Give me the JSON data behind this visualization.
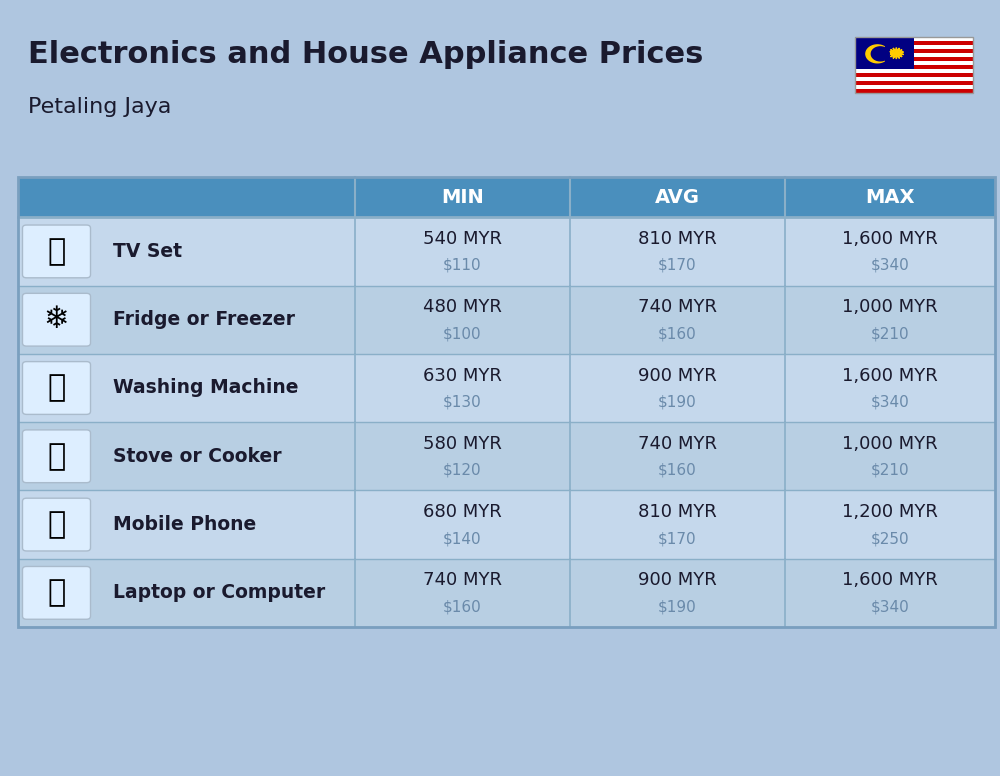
{
  "title": "Electronics and House Appliance Prices",
  "subtitle": "Petaling Jaya",
  "header_labels": [
    "MIN",
    "AVG",
    "MAX"
  ],
  "rows": [
    {
      "label": "TV Set",
      "emoji": "📺",
      "min_myr": "540 MYR",
      "min_usd": "$110",
      "avg_myr": "810 MYR",
      "avg_usd": "$170",
      "max_myr": "1,600 MYR",
      "max_usd": "$340"
    },
    {
      "label": "Fridge or Freezer",
      "emoji": "🍺",
      "min_myr": "480 MYR",
      "min_usd": "$100",
      "avg_myr": "740 MYR",
      "avg_usd": "$160",
      "max_myr": "1,000 MYR",
      "max_usd": "$210"
    },
    {
      "label": "Washing Machine",
      "emoji": "🧹",
      "min_myr": "630 MYR",
      "min_usd": "$130",
      "avg_myr": "900 MYR",
      "avg_usd": "$190",
      "max_myr": "1,600 MYR",
      "max_usd": "$340"
    },
    {
      "label": "Stove or Cooker",
      "emoji": "🧹",
      "min_myr": "580 MYR",
      "min_usd": "$120",
      "avg_myr": "740 MYR",
      "avg_usd": "$160",
      "max_myr": "1,000 MYR",
      "max_usd": "$210"
    },
    {
      "label": "Mobile Phone",
      "emoji": "📱",
      "min_myr": "680 MYR",
      "min_usd": "$140",
      "avg_myr": "810 MYR",
      "avg_usd": "$170",
      "max_myr": "1,200 MYR",
      "max_usd": "$250"
    },
    {
      "label": "Laptop or Computer",
      "emoji": "💻",
      "min_myr": "740 MYR",
      "min_usd": "$160",
      "avg_myr": "900 MYR",
      "avg_usd": "$190",
      "max_myr": "1,600 MYR",
      "max_usd": "$340"
    }
  ],
  "bg_color": "#afc6e0",
  "header_bg_color": "#4a8fbd",
  "header_text_color": "#ffffff",
  "row_light_color": "#c5d8ec",
  "row_dark_color": "#b8cfe3",
  "icon_col_color": "#8fb8d8",
  "label_col_color": "#d0e2f0",
  "cell_text_color": "#1a1a2e",
  "usd_text_color": "#6a8aaa",
  "title_color": "#1a1a2e",
  "subtitle_color": "#1a1a2e",
  "divider_color": "#8aafc8"
}
